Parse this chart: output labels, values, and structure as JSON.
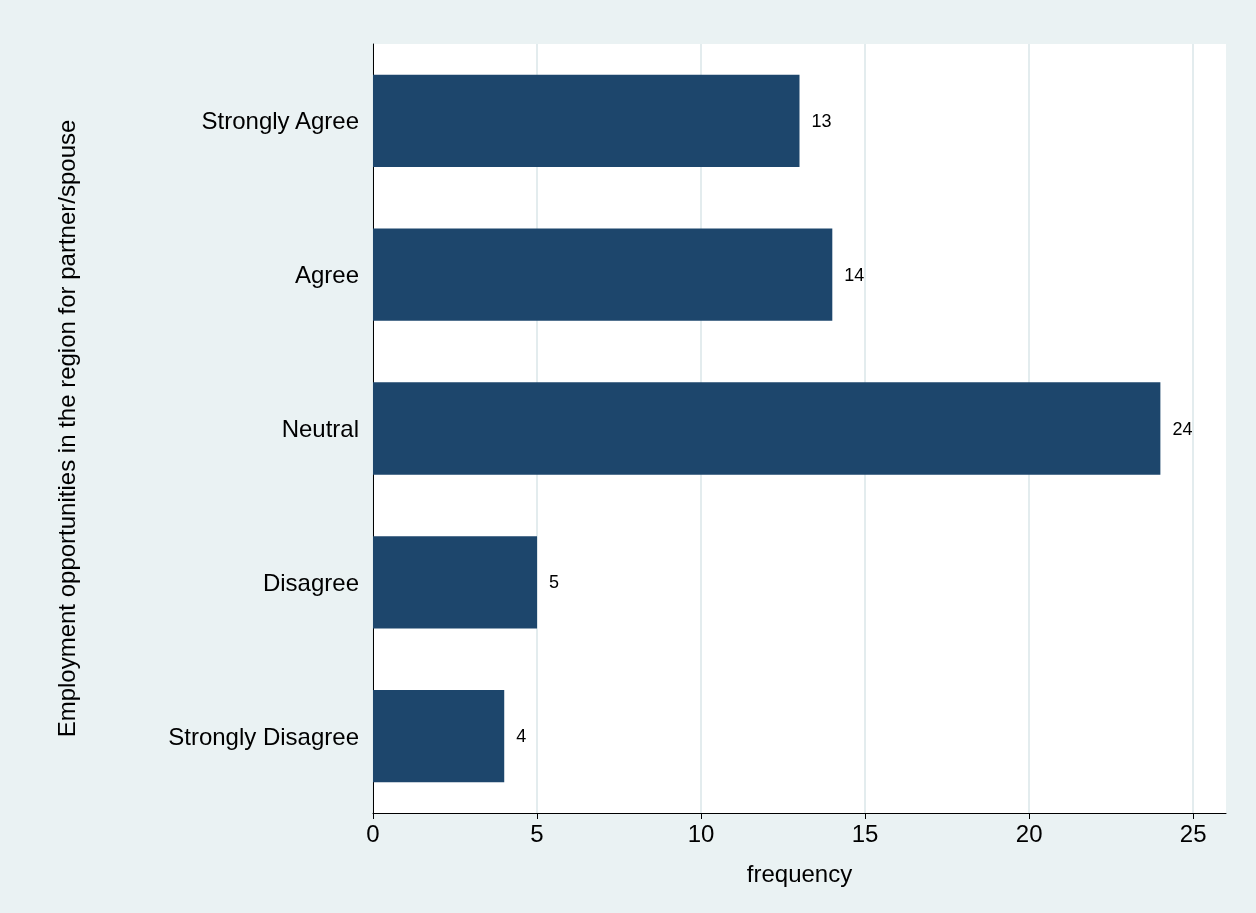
{
  "chart_data": {
    "type": "bar",
    "orientation": "horizontal",
    "categories": [
      "Strongly Agree",
      "Agree",
      "Neutral",
      "Disagree",
      "Strongly Disagree"
    ],
    "values": [
      13,
      14,
      24,
      5,
      4
    ],
    "color": "#1d466c",
    "xlabel": "frequency",
    "ylabel": "Employment opportunities in the region for partner/spouse",
    "xlim": [
      0,
      26
    ],
    "xticks": [
      0,
      5,
      10,
      15,
      20,
      25
    ],
    "grid": "x",
    "data_labels": true
  }
}
